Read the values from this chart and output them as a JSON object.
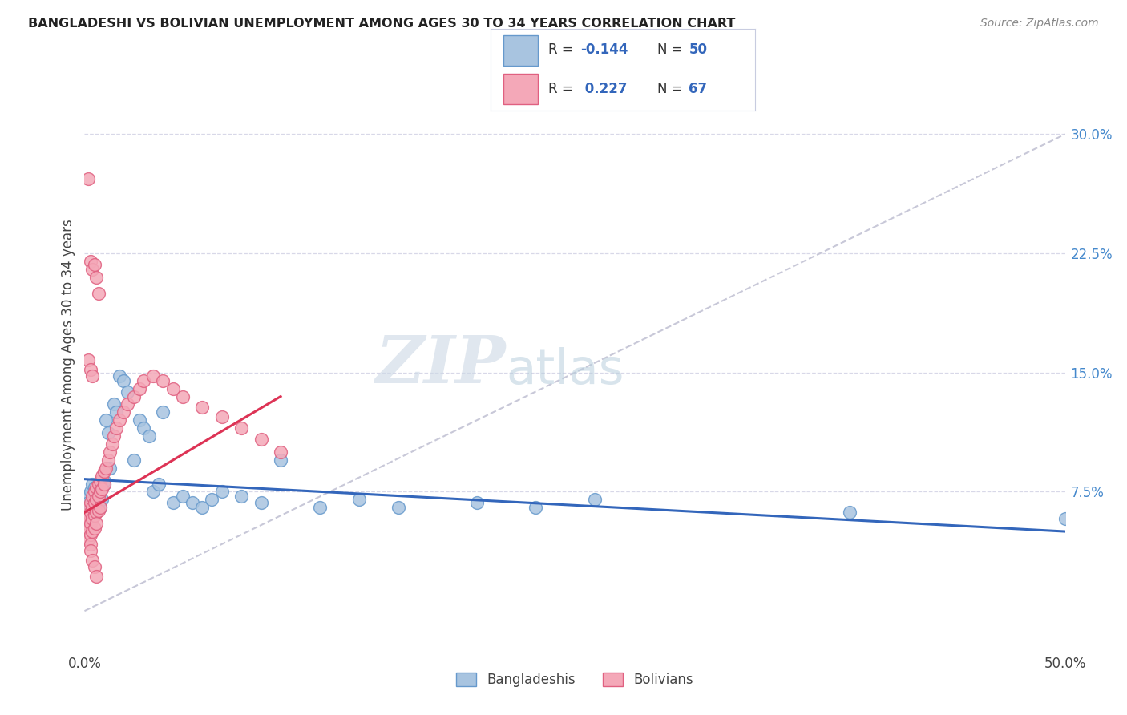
{
  "title": "BANGLADESHI VS BOLIVIAN UNEMPLOYMENT AMONG AGES 30 TO 34 YEARS CORRELATION CHART",
  "source": "Source: ZipAtlas.com",
  "ylabel": "Unemployment Among Ages 30 to 34 years",
  "xlim": [
    0.0,
    0.5
  ],
  "ylim": [
    -0.025,
    0.335
  ],
  "xtick_positions": [
    0.0,
    0.5
  ],
  "xticklabels": [
    "0.0%",
    "50.0%"
  ],
  "yticks_right": [
    0.075,
    0.15,
    0.225,
    0.3
  ],
  "ytick_right_labels": [
    "7.5%",
    "15.0%",
    "22.5%",
    "30.0%"
  ],
  "bangladeshi_color": "#a8c4e0",
  "bolivian_color": "#f4a8b8",
  "bangladeshi_edge": "#6699cc",
  "bolivian_edge": "#e06080",
  "trend_bangladeshi_color": "#3366bb",
  "trend_bolivian_color": "#dd3355",
  "ref_line_color": "#c8c8d8",
  "background_color": "#ffffff",
  "grid_color": "#d8d8e8",
  "legend_bangladeshi_R": "-0.144",
  "legend_bangladeshi_N": "50",
  "legend_bolivian_R": "0.227",
  "legend_bolivian_N": "67",
  "title_color": "#222222",
  "source_color": "#888888",
  "axis_label_color": "#444444",
  "tick_color_right": "#4488cc",
  "tick_color_bottom": "#444444",
  "bangladeshi_x": [
    0.001,
    0.002,
    0.003,
    0.003,
    0.004,
    0.004,
    0.005,
    0.005,
    0.006,
    0.006,
    0.007,
    0.007,
    0.008,
    0.008,
    0.009,
    0.009,
    0.01,
    0.01,
    0.011,
    0.012,
    0.013,
    0.015,
    0.016,
    0.018,
    0.02,
    0.022,
    0.025,
    0.028,
    0.03,
    0.033,
    0.035,
    0.038,
    0.04,
    0.045,
    0.05,
    0.055,
    0.06,
    0.065,
    0.07,
    0.08,
    0.09,
    0.1,
    0.12,
    0.14,
    0.16,
    0.2,
    0.23,
    0.26,
    0.39,
    0.5
  ],
  "bangladeshi_y": [
    0.072,
    0.068,
    0.065,
    0.075,
    0.08,
    0.07,
    0.068,
    0.078,
    0.07,
    0.065,
    0.072,
    0.068,
    0.075,
    0.065,
    0.078,
    0.07,
    0.08,
    0.082,
    0.12,
    0.112,
    0.09,
    0.13,
    0.125,
    0.148,
    0.145,
    0.138,
    0.095,
    0.12,
    0.115,
    0.11,
    0.075,
    0.08,
    0.125,
    0.068,
    0.072,
    0.068,
    0.065,
    0.07,
    0.075,
    0.072,
    0.068,
    0.095,
    0.065,
    0.07,
    0.065,
    0.068,
    0.065,
    0.07,
    0.062,
    0.058
  ],
  "bolivian_x": [
    0.001,
    0.001,
    0.002,
    0.002,
    0.002,
    0.002,
    0.003,
    0.003,
    0.003,
    0.003,
    0.003,
    0.004,
    0.004,
    0.004,
    0.004,
    0.005,
    0.005,
    0.005,
    0.005,
    0.006,
    0.006,
    0.006,
    0.006,
    0.007,
    0.007,
    0.007,
    0.008,
    0.008,
    0.008,
    0.009,
    0.009,
    0.01,
    0.01,
    0.011,
    0.012,
    0.013,
    0.014,
    0.015,
    0.016,
    0.018,
    0.02,
    0.022,
    0.025,
    0.028,
    0.03,
    0.035,
    0.04,
    0.045,
    0.05,
    0.06,
    0.07,
    0.08,
    0.09,
    0.1,
    0.002,
    0.003,
    0.004,
    0.005,
    0.006,
    0.007,
    0.003,
    0.004,
    0.005,
    0.006,
    0.002,
    0.003,
    0.004
  ],
  "bolivian_y": [
    0.06,
    0.055,
    0.065,
    0.058,
    0.052,
    0.045,
    0.068,
    0.062,
    0.055,
    0.048,
    0.042,
    0.072,
    0.065,
    0.058,
    0.05,
    0.075,
    0.068,
    0.06,
    0.052,
    0.078,
    0.07,
    0.062,
    0.055,
    0.08,
    0.072,
    0.063,
    0.082,
    0.075,
    0.065,
    0.085,
    0.077,
    0.088,
    0.08,
    0.09,
    0.095,
    0.1,
    0.105,
    0.11,
    0.115,
    0.12,
    0.125,
    0.13,
    0.135,
    0.14,
    0.145,
    0.148,
    0.145,
    0.14,
    0.135,
    0.128,
    0.122,
    0.115,
    0.108,
    0.1,
    0.272,
    0.22,
    0.215,
    0.218,
    0.21,
    0.2,
    0.038,
    0.032,
    0.028,
    0.022,
    0.158,
    0.152,
    0.148
  ],
  "trend_bangladeshi_x0": 0.0,
  "trend_bangladeshi_y0": 0.083,
  "trend_bangladeshi_x1": 0.5,
  "trend_bangladeshi_y1": 0.05,
  "trend_bolivian_x0": 0.0,
  "trend_bolivian_y0": 0.062,
  "trend_bolivian_x1": 0.1,
  "trend_bolivian_y1": 0.135
}
